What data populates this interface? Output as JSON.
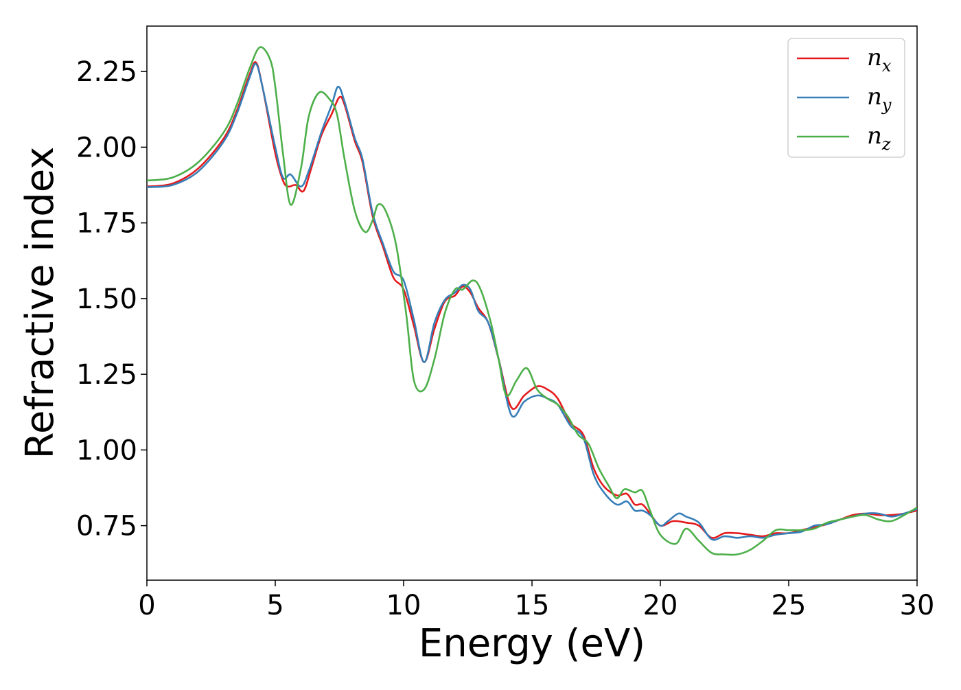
{
  "chart_data": {
    "type": "line",
    "title": "",
    "xlabel": "Energy (eV)",
    "ylabel": "Refractive index",
    "xlim": [
      0,
      30
    ],
    "ylim": [
      0.57,
      2.4
    ],
    "grid": false,
    "legend_position": "top-right",
    "x_ticks": [
      0,
      5,
      10,
      15,
      20,
      25,
      30
    ],
    "x_tick_labels": [
      "0",
      "5",
      "10",
      "15",
      "20",
      "25",
      "30"
    ],
    "y_ticks": [
      0.75,
      1.0,
      1.25,
      1.5,
      1.75,
      2.0,
      2.25
    ],
    "y_tick_labels": [
      "0.75",
      "1.00",
      "1.25",
      "1.50",
      "1.75",
      "2.00",
      "2.25"
    ],
    "series": [
      {
        "name": "n_x",
        "legend_main": "n",
        "legend_sub": "x",
        "color": "#e41a1c",
        "points": [
          [
            0,
            1.87
          ],
          [
            1,
            1.88
          ],
          [
            2,
            1.93
          ],
          [
            3,
            2.03
          ],
          [
            3.5,
            2.12
          ],
          [
            4,
            2.24
          ],
          [
            4.25,
            2.28
          ],
          [
            4.5,
            2.2
          ],
          [
            5,
            1.98
          ],
          [
            5.3,
            1.89
          ],
          [
            5.5,
            1.87
          ],
          [
            5.8,
            1.875
          ],
          [
            6.1,
            1.855
          ],
          [
            6.4,
            1.93
          ],
          [
            6.8,
            2.04
          ],
          [
            7.2,
            2.11
          ],
          [
            7.5,
            2.165
          ],
          [
            7.7,
            2.14
          ],
          [
            8.1,
            2.02
          ],
          [
            8.4,
            1.95
          ],
          [
            8.8,
            1.77
          ],
          [
            9.2,
            1.67
          ],
          [
            9.6,
            1.57
          ],
          [
            10.0,
            1.53
          ],
          [
            10.4,
            1.41
          ],
          [
            10.8,
            1.29
          ],
          [
            11.2,
            1.4
          ],
          [
            11.6,
            1.49
          ],
          [
            12.0,
            1.51
          ],
          [
            12.3,
            1.54
          ],
          [
            12.6,
            1.52
          ],
          [
            12.9,
            1.47
          ],
          [
            13.3,
            1.42
          ],
          [
            13.7,
            1.3
          ],
          [
            14.2,
            1.14
          ],
          [
            14.7,
            1.18
          ],
          [
            15.2,
            1.21
          ],
          [
            15.6,
            1.2
          ],
          [
            16.0,
            1.17
          ],
          [
            16.5,
            1.09
          ],
          [
            17.0,
            1.05
          ],
          [
            17.4,
            0.94
          ],
          [
            17.8,
            0.88
          ],
          [
            18.3,
            0.85
          ],
          [
            18.7,
            0.855
          ],
          [
            19.0,
            0.82
          ],
          [
            19.3,
            0.82
          ],
          [
            19.6,
            0.79
          ],
          [
            20.0,
            0.75
          ],
          [
            20.5,
            0.765
          ],
          [
            21.0,
            0.76
          ],
          [
            21.5,
            0.75
          ],
          [
            22.0,
            0.71
          ],
          [
            22.5,
            0.725
          ],
          [
            23.0,
            0.725
          ],
          [
            23.5,
            0.72
          ],
          [
            24.0,
            0.715
          ],
          [
            24.5,
            0.725
          ],
          [
            25.0,
            0.725
          ],
          [
            25.5,
            0.735
          ],
          [
            26.0,
            0.745
          ],
          [
            26.5,
            0.755
          ],
          [
            27.0,
            0.77
          ],
          [
            27.5,
            0.785
          ],
          [
            28.0,
            0.79
          ],
          [
            28.5,
            0.785
          ],
          [
            29.0,
            0.785
          ],
          [
            29.5,
            0.79
          ],
          [
            30.0,
            0.8
          ]
        ]
      },
      {
        "name": "n_y",
        "legend_main": "n",
        "legend_sub": "y",
        "color": "#377eb8",
        "points": [
          [
            0,
            1.868
          ],
          [
            1,
            1.875
          ],
          [
            2,
            1.92
          ],
          [
            3,
            2.02
          ],
          [
            3.5,
            2.11
          ],
          [
            4,
            2.23
          ],
          [
            4.25,
            2.275
          ],
          [
            4.5,
            2.2
          ],
          [
            5,
            2.0
          ],
          [
            5.3,
            1.9
          ],
          [
            5.6,
            1.91
          ],
          [
            6.0,
            1.87
          ],
          [
            6.3,
            1.92
          ],
          [
            6.8,
            2.05
          ],
          [
            7.2,
            2.14
          ],
          [
            7.45,
            2.2
          ],
          [
            7.7,
            2.15
          ],
          [
            8.1,
            2.03
          ],
          [
            8.4,
            1.96
          ],
          [
            8.8,
            1.78
          ],
          [
            9.2,
            1.68
          ],
          [
            9.6,
            1.59
          ],
          [
            10.0,
            1.56
          ],
          [
            10.4,
            1.43
          ],
          [
            10.8,
            1.29
          ],
          [
            11.2,
            1.42
          ],
          [
            11.6,
            1.495
          ],
          [
            12.0,
            1.52
          ],
          [
            12.3,
            1.545
          ],
          [
            12.6,
            1.53
          ],
          [
            12.9,
            1.46
          ],
          [
            13.3,
            1.42
          ],
          [
            13.7,
            1.3
          ],
          [
            14.2,
            1.115
          ],
          [
            14.7,
            1.16
          ],
          [
            15.2,
            1.18
          ],
          [
            15.6,
            1.17
          ],
          [
            16.0,
            1.15
          ],
          [
            16.5,
            1.08
          ],
          [
            17.0,
            1.04
          ],
          [
            17.4,
            0.92
          ],
          [
            17.8,
            0.86
          ],
          [
            18.3,
            0.82
          ],
          [
            18.7,
            0.83
          ],
          [
            19.0,
            0.8
          ],
          [
            19.3,
            0.8
          ],
          [
            19.6,
            0.785
          ],
          [
            20.0,
            0.75
          ],
          [
            20.3,
            0.765
          ],
          [
            20.7,
            0.79
          ],
          [
            21.0,
            0.78
          ],
          [
            21.5,
            0.76
          ],
          [
            22.0,
            0.705
          ],
          [
            22.5,
            0.715
          ],
          [
            23.0,
            0.71
          ],
          [
            23.5,
            0.715
          ],
          [
            24.0,
            0.71
          ],
          [
            24.5,
            0.72
          ],
          [
            25.0,
            0.725
          ],
          [
            25.5,
            0.73
          ],
          [
            26.0,
            0.75
          ],
          [
            26.5,
            0.755
          ],
          [
            27.0,
            0.77
          ],
          [
            27.5,
            0.78
          ],
          [
            28.0,
            0.79
          ],
          [
            28.5,
            0.79
          ],
          [
            29.0,
            0.78
          ],
          [
            29.5,
            0.79
          ],
          [
            30.0,
            0.805
          ]
        ]
      },
      {
        "name": "n_z",
        "legend_main": "n",
        "legend_sub": "z",
        "color": "#4daf4a",
        "points": [
          [
            0,
            1.89
          ],
          [
            1,
            1.9
          ],
          [
            2,
            1.95
          ],
          [
            3,
            2.05
          ],
          [
            3.5,
            2.14
          ],
          [
            4.0,
            2.26
          ],
          [
            4.4,
            2.33
          ],
          [
            4.8,
            2.29
          ],
          [
            5.0,
            2.2
          ],
          [
            5.3,
            1.98
          ],
          [
            5.6,
            1.81
          ],
          [
            6.0,
            1.93
          ],
          [
            6.3,
            2.1
          ],
          [
            6.7,
            2.18
          ],
          [
            7.1,
            2.16
          ],
          [
            7.4,
            2.11
          ],
          [
            7.7,
            1.96
          ],
          [
            8.1,
            1.79
          ],
          [
            8.5,
            1.72
          ],
          [
            8.8,
            1.76
          ],
          [
            9.0,
            1.81
          ],
          [
            9.3,
            1.79
          ],
          [
            9.7,
            1.68
          ],
          [
            10.1,
            1.45
          ],
          [
            10.4,
            1.23
          ],
          [
            10.8,
            1.2
          ],
          [
            11.2,
            1.3
          ],
          [
            11.6,
            1.45
          ],
          [
            12.0,
            1.53
          ],
          [
            12.3,
            1.53
          ],
          [
            12.7,
            1.56
          ],
          [
            13.0,
            1.53
          ],
          [
            13.4,
            1.42
          ],
          [
            13.7,
            1.3
          ],
          [
            14.0,
            1.18
          ],
          [
            14.4,
            1.23
          ],
          [
            14.8,
            1.27
          ],
          [
            15.2,
            1.2
          ],
          [
            15.6,
            1.17
          ],
          [
            16.0,
            1.15
          ],
          [
            16.4,
            1.11
          ],
          [
            16.8,
            1.05
          ],
          [
            17.2,
            1.02
          ],
          [
            17.6,
            0.94
          ],
          [
            18.0,
            0.88
          ],
          [
            18.3,
            0.84
          ],
          [
            18.6,
            0.87
          ],
          [
            19.0,
            0.86
          ],
          [
            19.3,
            0.865
          ],
          [
            19.6,
            0.8
          ],
          [
            20.0,
            0.72
          ],
          [
            20.6,
            0.69
          ],
          [
            21.0,
            0.74
          ],
          [
            21.5,
            0.7
          ],
          [
            22.0,
            0.66
          ],
          [
            22.5,
            0.655
          ],
          [
            23.0,
            0.655
          ],
          [
            23.5,
            0.67
          ],
          [
            24.0,
            0.7
          ],
          [
            24.5,
            0.735
          ],
          [
            25.0,
            0.735
          ],
          [
            25.5,
            0.735
          ],
          [
            26.0,
            0.74
          ],
          [
            26.5,
            0.76
          ],
          [
            27.0,
            0.77
          ],
          [
            27.5,
            0.78
          ],
          [
            28.0,
            0.785
          ],
          [
            28.5,
            0.77
          ],
          [
            29.0,
            0.765
          ],
          [
            29.5,
            0.785
          ],
          [
            30.0,
            0.81
          ]
        ]
      }
    ]
  }
}
